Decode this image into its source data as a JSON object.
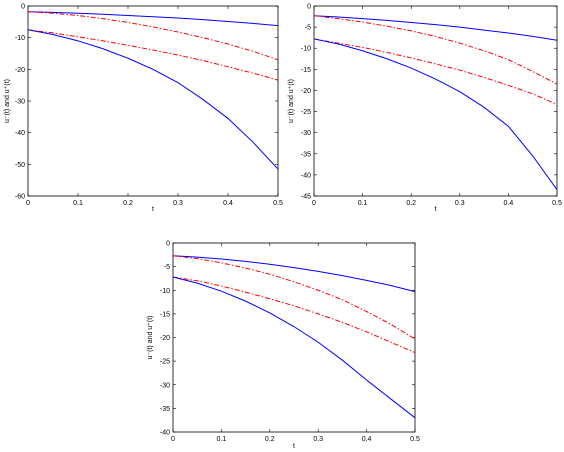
{
  "chart_data": [
    {
      "type": "line",
      "xlabel": "t",
      "ylabel": "u⁻(t) and u⁺(t)",
      "xlim": [
        0,
        0.5
      ],
      "ylim": [
        -60,
        0
      ],
      "xticks": [
        "0",
        "0.1",
        "0.2",
        "0.3",
        "0.4",
        "0.5"
      ],
      "yticks": [
        "0",
        "-10",
        "-20",
        "-30",
        "-40",
        "-50",
        "-60"
      ],
      "x": [
        0,
        0.05,
        0.1,
        0.15,
        0.2,
        0.25,
        0.3,
        0.35,
        0.4,
        0.45,
        0.5
      ],
      "series": [
        {
          "style": "solid",
          "color": "#0000ff",
          "values": [
            -1.8,
            -2.0,
            -2.3,
            -2.6,
            -3.0,
            -3.4,
            -3.8,
            -4.3,
            -4.9,
            -5.5,
            -6.2
          ]
        },
        {
          "style": "dashdot",
          "color": "#ff0000",
          "values": [
            -1.8,
            -2.3,
            -3.0,
            -4.0,
            -5.2,
            -6.6,
            -8.2,
            -10.0,
            -12.0,
            -14.3,
            -17.0
          ]
        },
        {
          "style": "dashdot",
          "color": "#ff0000",
          "values": [
            -7.5,
            -8.5,
            -9.7,
            -11.0,
            -12.4,
            -13.9,
            -15.5,
            -17.2,
            -19.2,
            -21.2,
            -23.4
          ]
        },
        {
          "style": "solid",
          "color": "#0000ff",
          "values": [
            -7.5,
            -9.0,
            -11.0,
            -13.5,
            -16.5,
            -20.0,
            -24.2,
            -29.5,
            -35.5,
            -43.0,
            -51.5
          ]
        }
      ]
    },
    {
      "type": "line",
      "xlabel": "t",
      "ylabel": "u⁻(t) and u⁺(t)",
      "xlim": [
        0,
        0.5
      ],
      "ylim": [
        -45,
        0
      ],
      "xticks": [
        "0",
        "0.1",
        "0.2",
        "0.3",
        "0.4",
        "0.5"
      ],
      "yticks": [
        "0",
        "-5",
        "-10",
        "-15",
        "-20",
        "-25",
        "-30",
        "-35",
        "-40",
        "-45"
      ],
      "x": [
        0,
        0.05,
        0.1,
        0.15,
        0.2,
        0.25,
        0.3,
        0.35,
        0.4,
        0.45,
        0.5
      ],
      "series": [
        {
          "style": "solid",
          "color": "#0000ff",
          "values": [
            -2.3,
            -2.6,
            -3.0,
            -3.4,
            -3.9,
            -4.4,
            -5.0,
            -5.7,
            -6.4,
            -7.2,
            -8.1
          ]
        },
        {
          "style": "dashdot",
          "color": "#ff0000",
          "values": [
            -2.3,
            -3.0,
            -3.8,
            -4.8,
            -5.9,
            -7.2,
            -8.8,
            -10.6,
            -12.7,
            -15.5,
            -18.5
          ]
        },
        {
          "style": "dashdot",
          "color": "#ff0000",
          "values": [
            -7.8,
            -8.8,
            -9.8,
            -11.0,
            -12.3,
            -13.7,
            -15.2,
            -16.9,
            -18.8,
            -20.8,
            -23.3
          ]
        },
        {
          "style": "solid",
          "color": "#0000ff",
          "values": [
            -7.8,
            -9.0,
            -10.6,
            -12.5,
            -14.7,
            -17.3,
            -20.3,
            -24.0,
            -28.5,
            -35.5,
            -43.5
          ]
        }
      ]
    },
    {
      "type": "line",
      "xlabel": "t",
      "ylabel": "u⁻(t) and u⁺(t)",
      "xlim": [
        0,
        0.5
      ],
      "ylim": [
        -40,
        0
      ],
      "xticks": [
        "0",
        "0.1",
        "0.2",
        "0.3",
        "0.4",
        "0.5"
      ],
      "yticks": [
        "0",
        "-5",
        "-10",
        "-15",
        "-20",
        "-25",
        "-30",
        "-35",
        "-40"
      ],
      "x": [
        0,
        0.05,
        0.1,
        0.15,
        0.2,
        0.25,
        0.3,
        0.35,
        0.4,
        0.45,
        0.5
      ],
      "series": [
        {
          "style": "solid",
          "color": "#0000ff",
          "values": [
            -2.7,
            -3.0,
            -3.4,
            -3.9,
            -4.5,
            -5.2,
            -6.0,
            -6.9,
            -7.9,
            -9.0,
            -10.3
          ]
        },
        {
          "style": "dashdot",
          "color": "#ff0000",
          "values": [
            -2.7,
            -3.3,
            -4.2,
            -5.3,
            -6.6,
            -8.2,
            -10.0,
            -12.0,
            -14.5,
            -17.2,
            -20.3
          ]
        },
        {
          "style": "dashdot",
          "color": "#ff0000",
          "values": [
            -7.2,
            -8.0,
            -9.1,
            -10.4,
            -11.8,
            -13.3,
            -15.0,
            -16.8,
            -18.8,
            -21.0,
            -23.2
          ]
        },
        {
          "style": "solid",
          "color": "#0000ff",
          "values": [
            -7.2,
            -8.5,
            -10.2,
            -12.3,
            -14.8,
            -17.7,
            -21.0,
            -24.8,
            -29.0,
            -33.0,
            -37.0
          ]
        }
      ]
    }
  ]
}
